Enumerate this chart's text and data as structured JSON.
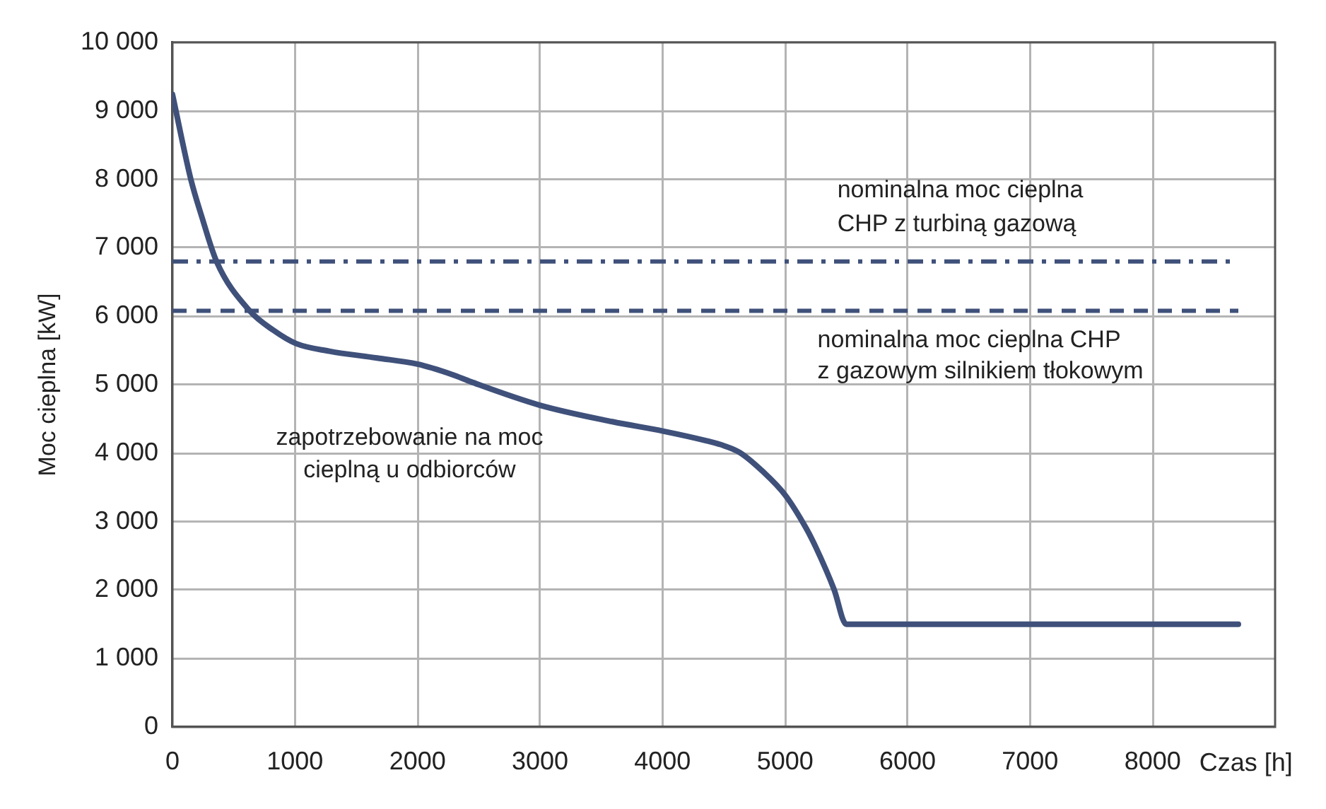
{
  "chart_data": {
    "type": "line",
    "xlabel": "Czas [h]",
    "ylabel": "Moc cieplna [kW]",
    "x": [
      0,
      150,
      240,
      360,
      630,
      820,
      1010,
      1280,
      1670,
      2000,
      2280,
      2440,
      3000,
      3590,
      4010,
      4360,
      4500,
      4630,
      4820,
      5000,
      5170,
      5250,
      5400,
      5500,
      8700
    ],
    "series": [
      {
        "name": "zapotrzebowanie na moc\ncieplną u odbiorców",
        "color": "#3f517a",
        "values": [
          9240,
          8000,
          7450,
          6800,
          6080,
          5800,
          5600,
          5490,
          5390,
          5300,
          5150,
          5040,
          4700,
          4460,
          4320,
          4180,
          4110,
          4010,
          3730,
          3390,
          2910,
          2630,
          2010,
          1500,
          1500
        ]
      }
    ],
    "xlim": [
      0,
      9000
    ],
    "xticks": [
      0,
      1000,
      2000,
      3000,
      4000,
      5000,
      6000,
      7000,
      8000
    ],
    "ylim": [
      0,
      10000
    ],
    "yticks": [
      0,
      {
        "value": 1000,
        "label": "1 000"
      },
      {
        "value": 2000,
        "label": "2 000"
      },
      {
        "value": 3000,
        "label": "3 000"
      },
      {
        "value": 4000,
        "label": "4 000"
      },
      {
        "value": 5000,
        "label": "5 000"
      },
      {
        "value": 6000,
        "label": "6 000"
      },
      {
        "value": 7000,
        "label": "7 000"
      },
      {
        "value": 8000,
        "label": "8 000"
      },
      {
        "value": 9000,
        "label": "9 000"
      },
      {
        "value": 10000,
        "label": "10 000"
      }
    ],
    "grid": true,
    "ref_lines": [
      {
        "axis": "y",
        "value": 6800,
        "label": "nominalna moc cieplna\nCHP z turbiną gazową",
        "color": "#3f517a",
        "line_style": "dashdot"
      },
      {
        "axis": "y",
        "value": 6080,
        "label": "nominalna moc cieplna CHP\nz gazowym silnikiem tłokowym",
        "color": "#3f517a",
        "line_style": "dashed"
      }
    ]
  }
}
